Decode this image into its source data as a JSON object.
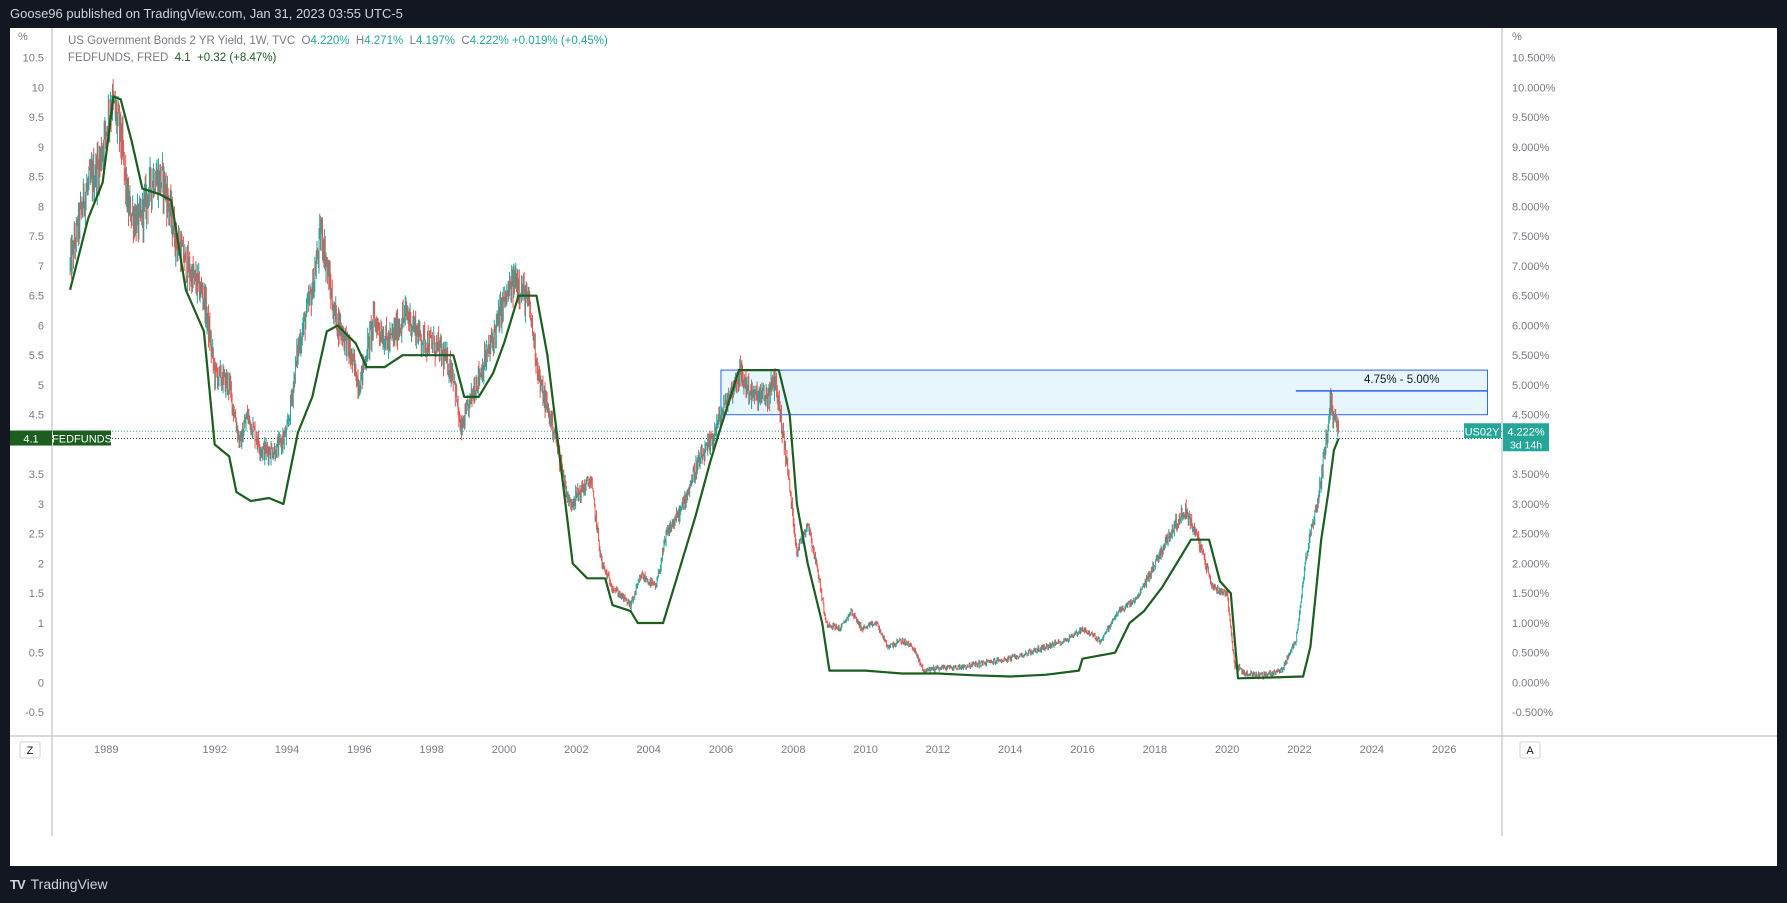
{
  "header": {
    "published": "Goose96 published on TradingView.com, Jan 31, 2023 03:55 UTC-5"
  },
  "footer": {
    "brand": "TradingView"
  },
  "legend": {
    "main_title": "US Government Bonds 2 YR Yield, 1W, TVC",
    "o_label": "O",
    "o_value": "4.220%",
    "h_label": "H",
    "h_value": "4.271%",
    "l_label": "L",
    "l_value": "4.197%",
    "c_label": "C",
    "c_value": "4.222%",
    "change": "+0.019% (+0.45%)",
    "second_title": "FEDFUNDS, FRED",
    "second_value": "4.1",
    "second_change": "+0.32 (+8.47%)"
  },
  "axis_controls": {
    "left": "Z",
    "right": "A"
  },
  "badges": {
    "fedfunds_value": "4.1",
    "fedfunds_name": "FEDFUNDS",
    "us02y_name": "US02Y",
    "us02y_value": "4.222%",
    "us02y_countdown": "3d 14h"
  },
  "colors": {
    "up": "#26a69a",
    "down": "#ef5350",
    "fedfunds": "#1b5e20",
    "zone_fill": "#e3f4fb",
    "zone_border": "#2962ff"
  },
  "chart_data": {
    "type": "line",
    "title": "",
    "xlabel": "",
    "ylabel": "",
    "left_unit": "%",
    "right_unit": "%",
    "x_ticks": [
      "1989",
      "1992",
      "1994",
      "1996",
      "1998",
      "2000",
      "2002",
      "2004",
      "2006",
      "2008",
      "2010",
      "2012",
      "2014",
      "2016",
      "2018",
      "2020",
      "2022",
      "2024",
      "2026"
    ],
    "x_tick_values": [
      1989,
      1992,
      1994,
      1996,
      1998,
      2000,
      2002,
      2004,
      2006,
      2008,
      2010,
      2012,
      2014,
      2016,
      2018,
      2020,
      2022,
      2024,
      2026
    ],
    "xlim": [
      1987.5,
      2027.6
    ],
    "ylim": [
      -0.9,
      11.0
    ],
    "left_ticks": [
      "10.5",
      "10",
      "9.5",
      "9",
      "8.5",
      "8",
      "7.5",
      "7",
      "6.5",
      "6",
      "5.5",
      "5",
      "4.5",
      "3.5",
      "3",
      "2.5",
      "2",
      "1.5",
      "1",
      "0.5",
      "0",
      "-0.5"
    ],
    "left_tick_values": [
      10.5,
      10,
      9.5,
      9,
      8.5,
      8,
      7.5,
      7,
      6.5,
      6,
      5.5,
      5,
      4.5,
      3.5,
      3,
      2.5,
      2,
      1.5,
      1,
      0.5,
      0,
      -0.5
    ],
    "right_ticks": [
      "10.500%",
      "10.000%",
      "9.500%",
      "9.000%",
      "8.500%",
      "8.000%",
      "7.500%",
      "7.000%",
      "6.500%",
      "6.000%",
      "5.500%",
      "5.000%",
      "4.500%",
      "3.500%",
      "3.000%",
      "2.500%",
      "2.000%",
      "1.500%",
      "1.000%",
      "0.500%",
      "0.000%",
      "-0.500%"
    ],
    "right_tick_values": [
      10.5,
      10,
      9.5,
      9,
      8.5,
      8,
      7.5,
      7,
      6.5,
      6,
      5.5,
      5,
      4.5,
      3.5,
      3,
      2.5,
      2,
      1.5,
      1,
      0.5,
      0,
      -0.5
    ],
    "zone": {
      "x_start": 2006.0,
      "x_end": 2027.2,
      "y_low": 4.5,
      "y_high": 5.25
    },
    "target_line": {
      "x_start": 2021.9,
      "x_end": 2027.2,
      "y": 4.9,
      "label": "4.75% - 5.00%"
    },
    "last_values": {
      "fedfunds": 4.1,
      "us02y": 4.222
    },
    "series": [
      {
        "name": "US Government Bonds 2 YR Yield",
        "style": "candles",
        "points": [
          [
            1988.0,
            7.0
          ],
          [
            1988.4,
            8.2
          ],
          [
            1988.8,
            8.7
          ],
          [
            1989.15,
            9.8
          ],
          [
            1989.4,
            9.2
          ],
          [
            1989.6,
            8.0
          ],
          [
            1989.9,
            7.7
          ],
          [
            1990.3,
            8.5
          ],
          [
            1990.6,
            8.4
          ],
          [
            1990.9,
            7.5
          ],
          [
            1991.3,
            6.9
          ],
          [
            1991.7,
            6.5
          ],
          [
            1992.0,
            5.2
          ],
          [
            1992.4,
            5.0
          ],
          [
            1992.7,
            4.0
          ],
          [
            1992.9,
            4.5
          ],
          [
            1993.3,
            3.9
          ],
          [
            1993.7,
            3.9
          ],
          [
            1994.0,
            4.2
          ],
          [
            1994.3,
            5.6
          ],
          [
            1994.7,
            6.6
          ],
          [
            1994.95,
            7.6
          ],
          [
            1995.3,
            6.2
          ],
          [
            1995.6,
            5.8
          ],
          [
            1996.0,
            5.0
          ],
          [
            1996.4,
            6.1
          ],
          [
            1996.8,
            5.7
          ],
          [
            1997.3,
            6.2
          ],
          [
            1997.7,
            5.8
          ],
          [
            1998.2,
            5.6
          ],
          [
            1998.6,
            5.2
          ],
          [
            1998.8,
            4.2
          ],
          [
            1999.2,
            5.0
          ],
          [
            1999.6,
            5.6
          ],
          [
            2000.0,
            6.4
          ],
          [
            2000.35,
            6.8
          ],
          [
            2000.7,
            6.3
          ],
          [
            2001.0,
            5.0
          ],
          [
            2001.4,
            4.2
          ],
          [
            2001.8,
            3.0
          ],
          [
            2002.1,
            3.2
          ],
          [
            2002.4,
            3.4
          ],
          [
            2002.7,
            2.0
          ],
          [
            2003.0,
            1.6
          ],
          [
            2003.5,
            1.3
          ],
          [
            2003.8,
            1.8
          ],
          [
            2004.2,
            1.6
          ],
          [
            2004.5,
            2.5
          ],
          [
            2004.9,
            2.9
          ],
          [
            2005.3,
            3.6
          ],
          [
            2005.7,
            4.0
          ],
          [
            2006.0,
            4.5
          ],
          [
            2006.5,
            5.2
          ],
          [
            2006.9,
            4.8
          ],
          [
            2007.3,
            4.8
          ],
          [
            2007.5,
            5.1
          ],
          [
            2007.8,
            3.8
          ],
          [
            2008.1,
            2.2
          ],
          [
            2008.4,
            2.7
          ],
          [
            2008.7,
            1.8
          ],
          [
            2008.9,
            1.0
          ],
          [
            2009.3,
            0.9
          ],
          [
            2009.6,
            1.2
          ],
          [
            2009.9,
            0.9
          ],
          [
            2010.3,
            1.0
          ],
          [
            2010.6,
            0.6
          ],
          [
            2011.0,
            0.7
          ],
          [
            2011.3,
            0.6
          ],
          [
            2011.6,
            0.2
          ],
          [
            2012.0,
            0.25
          ],
          [
            2012.5,
            0.25
          ],
          [
            2013.0,
            0.3
          ],
          [
            2013.5,
            0.35
          ],
          [
            2014.0,
            0.4
          ],
          [
            2014.5,
            0.5
          ],
          [
            2015.0,
            0.6
          ],
          [
            2015.5,
            0.7
          ],
          [
            2016.0,
            0.9
          ],
          [
            2016.5,
            0.7
          ],
          [
            2017.0,
            1.2
          ],
          [
            2017.5,
            1.4
          ],
          [
            2018.0,
            2.0
          ],
          [
            2018.5,
            2.6
          ],
          [
            2018.85,
            2.9
          ],
          [
            2019.2,
            2.4
          ],
          [
            2019.6,
            1.6
          ],
          [
            2020.0,
            1.5
          ],
          [
            2020.2,
            0.3
          ],
          [
            2020.5,
            0.15
          ],
          [
            2021.0,
            0.12
          ],
          [
            2021.5,
            0.2
          ],
          [
            2021.9,
            0.7
          ],
          [
            2022.2,
            2.2
          ],
          [
            2022.5,
            3.0
          ],
          [
            2022.8,
            4.4
          ],
          [
            2022.85,
            4.7
          ],
          [
            2023.0,
            4.4
          ],
          [
            2023.08,
            4.22
          ]
        ]
      },
      {
        "name": "FEDFUNDS",
        "style": "line",
        "points": [
          [
            1988.0,
            6.6
          ],
          [
            1988.5,
            7.8
          ],
          [
            1988.9,
            8.4
          ],
          [
            1989.2,
            9.85
          ],
          [
            1989.4,
            9.8
          ],
          [
            1989.7,
            9.1
          ],
          [
            1990.0,
            8.3
          ],
          [
            1990.5,
            8.2
          ],
          [
            1990.8,
            8.1
          ],
          [
            1991.2,
            6.6
          ],
          [
            1991.7,
            5.9
          ],
          [
            1992.0,
            4.0
          ],
          [
            1992.4,
            3.8
          ],
          [
            1992.6,
            3.2
          ],
          [
            1993.0,
            3.05
          ],
          [
            1993.5,
            3.1
          ],
          [
            1993.9,
            3.0
          ],
          [
            1994.3,
            4.2
          ],
          [
            1994.7,
            4.8
          ],
          [
            1995.1,
            5.9
          ],
          [
            1995.4,
            6.0
          ],
          [
            1995.9,
            5.7
          ],
          [
            1996.2,
            5.3
          ],
          [
            1996.7,
            5.3
          ],
          [
            1997.2,
            5.5
          ],
          [
            1997.7,
            5.5
          ],
          [
            1998.2,
            5.5
          ],
          [
            1998.6,
            5.5
          ],
          [
            1998.9,
            4.8
          ],
          [
            1999.3,
            4.8
          ],
          [
            1999.7,
            5.2
          ],
          [
            2000.0,
            5.7
          ],
          [
            2000.4,
            6.5
          ],
          [
            2000.9,
            6.5
          ],
          [
            2001.2,
            5.5
          ],
          [
            2001.5,
            4.0
          ],
          [
            2001.9,
            2.0
          ],
          [
            2002.3,
            1.75
          ],
          [
            2002.8,
            1.75
          ],
          [
            2003.0,
            1.3
          ],
          [
            2003.5,
            1.2
          ],
          [
            2003.7,
            1.0
          ],
          [
            2004.4,
            1.0
          ],
          [
            2004.8,
            1.8
          ],
          [
            2005.3,
            2.8
          ],
          [
            2005.7,
            3.7
          ],
          [
            2006.0,
            4.3
          ],
          [
            2006.5,
            5.25
          ],
          [
            2007.6,
            5.25
          ],
          [
            2007.9,
            4.5
          ],
          [
            2008.1,
            3.0
          ],
          [
            2008.4,
            2.0
          ],
          [
            2008.8,
            1.0
          ],
          [
            2009.0,
            0.2
          ],
          [
            2010.0,
            0.2
          ],
          [
            2011.0,
            0.15
          ],
          [
            2012.0,
            0.15
          ],
          [
            2013.0,
            0.12
          ],
          [
            2014.0,
            0.1
          ],
          [
            2015.0,
            0.13
          ],
          [
            2015.9,
            0.2
          ],
          [
            2016.0,
            0.4
          ],
          [
            2016.9,
            0.5
          ],
          [
            2017.3,
            1.0
          ],
          [
            2017.7,
            1.2
          ],
          [
            2018.2,
            1.6
          ],
          [
            2018.6,
            2.0
          ],
          [
            2019.0,
            2.4
          ],
          [
            2019.5,
            2.4
          ],
          [
            2019.8,
            1.7
          ],
          [
            2020.1,
            1.5
          ],
          [
            2020.3,
            0.07
          ],
          [
            2021.0,
            0.08
          ],
          [
            2022.1,
            0.1
          ],
          [
            2022.3,
            0.6
          ],
          [
            2022.6,
            2.4
          ],
          [
            2022.8,
            3.2
          ],
          [
            2022.95,
            3.9
          ],
          [
            2023.08,
            4.1
          ]
        ]
      }
    ]
  }
}
